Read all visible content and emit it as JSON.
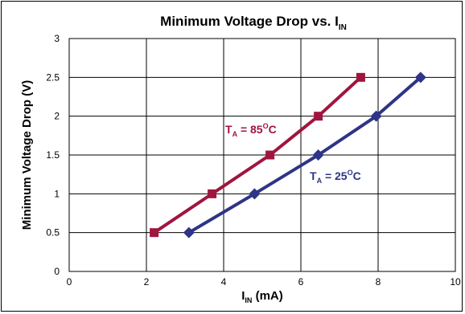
{
  "chart_data": {
    "type": "line",
    "title": "Minimum Voltage Drop vs. I",
    "title_sub": "IN",
    "xlabel": "I",
    "xlabel_sub": "IN",
    "xlabel_unit": " (mA)",
    "ylabel": "Minimum Voltage Drop (V)",
    "xlim": [
      0,
      10
    ],
    "ylim": [
      0,
      3
    ],
    "xticks": [
      0,
      2,
      4,
      6,
      8,
      10
    ],
    "yticks": [
      0,
      0.5,
      1,
      1.5,
      2,
      2.5,
      3
    ],
    "ytick_labels": [
      "0",
      "0.5",
      "1",
      "1.5",
      "2",
      "2.5",
      "3"
    ],
    "grid": true,
    "series": [
      {
        "name": "T_A = 85°C",
        "color": "#a0153e",
        "marker": "square",
        "x": [
          2.2,
          3.7,
          5.2,
          6.45,
          7.55
        ],
        "y": [
          0.5,
          1.0,
          1.5,
          2.0,
          2.5
        ],
        "label": {
          "main": "T",
          "sub": "A",
          "rest": " = 85",
          "sup": "O",
          "unit": "C"
        }
      },
      {
        "name": "T_A = 25°C",
        "color": "#2e3586",
        "marker": "diamond",
        "x": [
          3.1,
          4.8,
          6.45,
          7.95,
          9.1
        ],
        "y": [
          0.5,
          1.0,
          1.5,
          2.0,
          2.5
        ],
        "label": {
          "main": "T",
          "sub": "A",
          "rest": " = 25",
          "sup": "O",
          "unit": "C"
        }
      }
    ]
  }
}
